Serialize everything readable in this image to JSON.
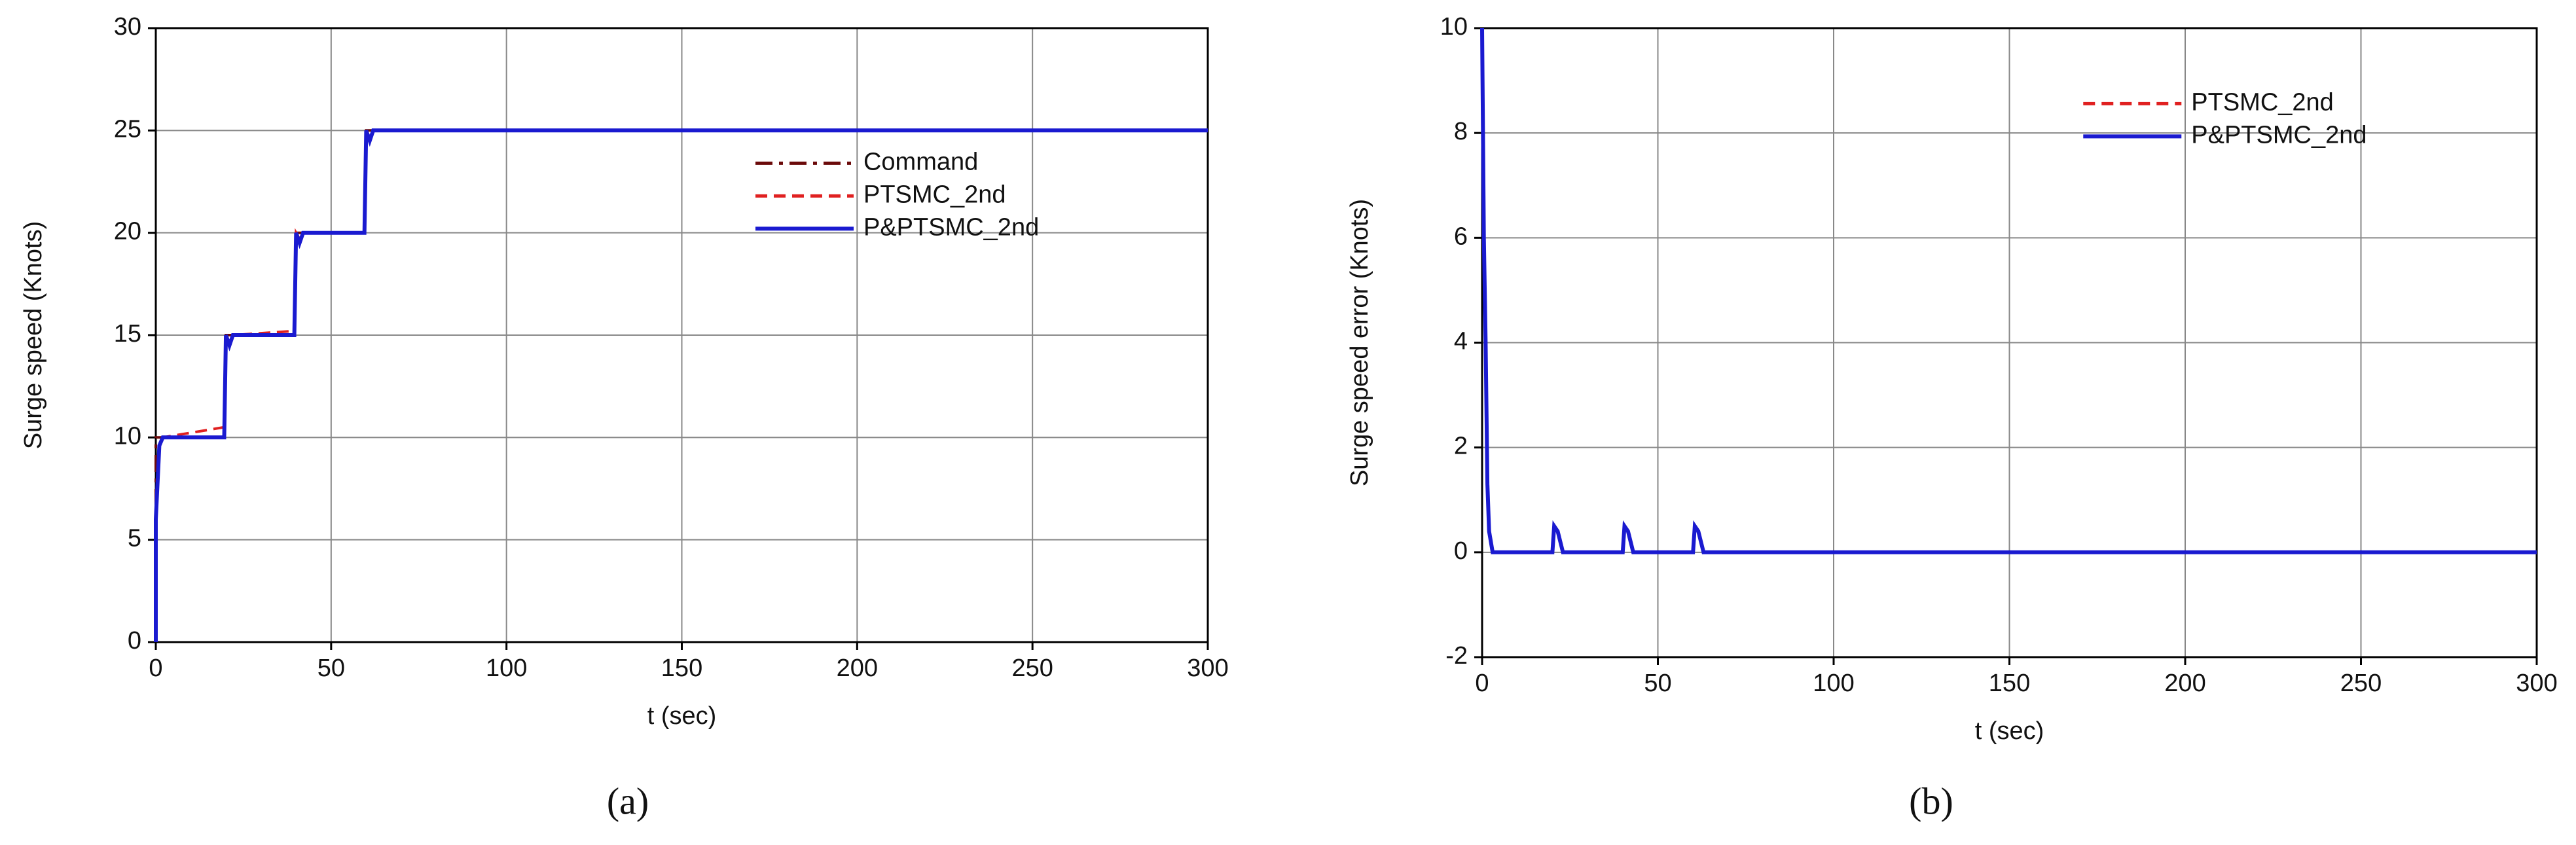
{
  "chart_data": [
    {
      "type": "line",
      "xlabel": "t (sec)",
      "ylabel": "Surge speed (Knots)",
      "caption": "(a)",
      "x": [
        0,
        0,
        1,
        2,
        19.5,
        20,
        21,
        22,
        39.5,
        40,
        41,
        42,
        59.5,
        60,
        61,
        62,
        300
      ],
      "series": [
        {
          "name": "Command",
          "color": "#6b0a0a",
          "dash": "dashdot",
          "values": [
            0,
            10,
            10,
            10,
            10,
            15,
            15,
            15,
            15,
            20,
            20,
            20,
            20,
            25,
            25,
            25,
            25
          ]
        },
        {
          "name": "PTSMC_2nd",
          "color": "#e02020",
          "dash": "dash",
          "values": [
            0,
            6,
            9.5,
            10,
            10.5,
            15,
            14.6,
            15,
            15.2,
            20,
            19.7,
            20,
            20,
            25,
            24.6,
            25,
            25
          ]
        },
        {
          "name": "P&PTSMC_2nd",
          "color": "#1a1ad0",
          "dash": "solid",
          "values": [
            0,
            6,
            9.6,
            10,
            10,
            15,
            14.5,
            15,
            15,
            20,
            19.5,
            20,
            20,
            25,
            24.5,
            25,
            25
          ]
        }
      ],
      "xlim": [
        0,
        300
      ],
      "xticks": [
        0,
        50,
        100,
        150,
        200,
        250,
        300
      ],
      "ylim": [
        0,
        30
      ],
      "yticks": [
        0,
        5,
        10,
        15,
        20,
        25,
        30
      ],
      "grid": true,
      "legend": "center right"
    },
    {
      "type": "line",
      "xlabel": "t (sec)",
      "ylabel": "Surge speed error (Knots)",
      "caption": "(b)",
      "x": [
        0,
        0.5,
        1,
        1.5,
        2,
        3,
        20,
        20.5,
        21.5,
        23,
        40,
        40.5,
        41.5,
        43,
        60,
        60.5,
        61.5,
        63,
        300
      ],
      "series": [
        {
          "name": "PTSMC_2nd",
          "color": "#e02020",
          "dash": "dash",
          "values": [
            10,
            6,
            4,
            1.3,
            0.4,
            0,
            0,
            0.5,
            0.4,
            0,
            0,
            0.5,
            0.4,
            0,
            0,
            0.5,
            0.4,
            0,
            0
          ]
        },
        {
          "name": "P&PTSMC_2nd",
          "color": "#1a1ad0",
          "dash": "solid",
          "values": [
            10,
            6,
            4,
            1.3,
            0.4,
            0,
            0,
            0.5,
            0.4,
            0,
            0,
            0.5,
            0.4,
            0,
            0,
            0.5,
            0.4,
            0,
            0
          ]
        }
      ],
      "xlim": [
        0,
        300
      ],
      "xticks": [
        0,
        50,
        100,
        150,
        200,
        250,
        300
      ],
      "ylim": [
        -2,
        10
      ],
      "yticks": [
        -2,
        0,
        2,
        4,
        6,
        8,
        10
      ],
      "grid": true,
      "legend": "upper right"
    }
  ]
}
